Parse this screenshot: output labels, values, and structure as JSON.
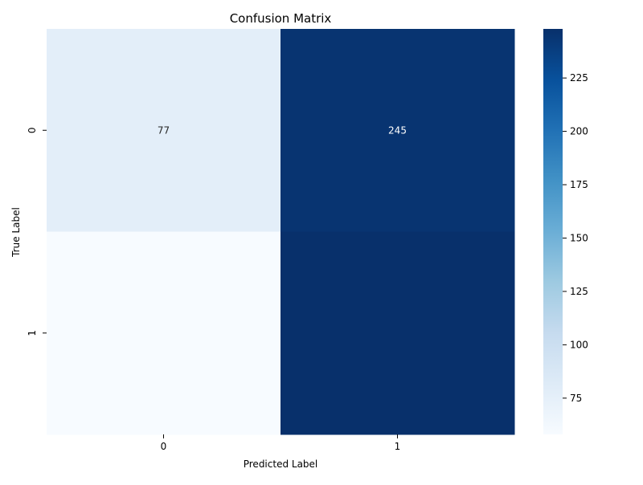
{
  "chart_data": {
    "type": "heatmap",
    "title": "Confusion Matrix",
    "xlabel": "Predicted Label",
    "ylabel": "True Label",
    "x_categories": [
      "0",
      "1"
    ],
    "y_categories": [
      "0",
      "1"
    ],
    "values": [
      [
        77,
        245
      ],
      [
        58,
        248
      ]
    ],
    "annotations": [
      [
        "77",
        "245"
      ],
      [
        "",
        ""
      ]
    ],
    "colormap": "Blues",
    "color_range": [
      58,
      248
    ],
    "colorbar_ticks": [
      75,
      100,
      125,
      150,
      175,
      200,
      225
    ],
    "colorbar_tick_labels": [
      "75",
      "100",
      "125",
      "150",
      "175",
      "200",
      "225"
    ]
  }
}
